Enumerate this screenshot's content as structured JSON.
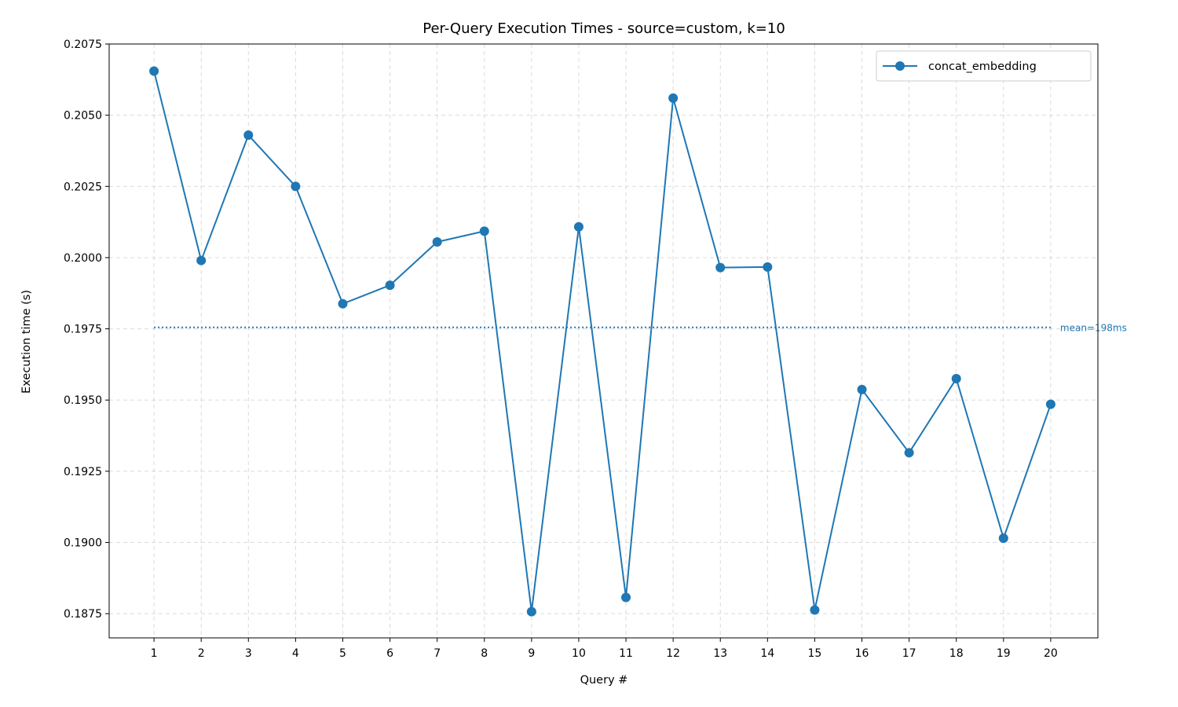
{
  "chart_data": {
    "type": "line",
    "title": "Per-Query Execution Times - source=custom, k=10",
    "xlabel": "Query #",
    "ylabel": "Execution time (s)",
    "x": [
      1,
      2,
      3,
      4,
      5,
      6,
      7,
      8,
      9,
      10,
      11,
      12,
      13,
      14,
      15,
      16,
      17,
      18,
      19,
      20
    ],
    "x_ticks": [
      "1",
      "2",
      "3",
      "4",
      "5",
      "6",
      "7",
      "8",
      "9",
      "10",
      "11",
      "12",
      "13",
      "14",
      "15",
      "16",
      "17",
      "18",
      "19",
      "20"
    ],
    "xlim": [
      0.05,
      21.0
    ],
    "ylim": [
      0.18665,
      0.2075
    ],
    "y_ticks": [
      "0.1875",
      "0.1900",
      "0.1925",
      "0.1950",
      "0.1975",
      "0.2000",
      "0.2025",
      "0.2050",
      "0.2075"
    ],
    "y_tick_values": [
      0.1875,
      0.19,
      0.1925,
      0.195,
      0.1975,
      0.2,
      0.2025,
      0.205,
      0.2075
    ],
    "grid": true,
    "legend_position": "top-right",
    "series": [
      {
        "name": "concat_embedding",
        "color": "#1f77b4",
        "marker": "circle",
        "values": [
          0.20655,
          0.1999,
          0.2043,
          0.2025,
          0.19838,
          0.19903,
          0.20055,
          0.20093,
          0.18757,
          0.20108,
          0.18807,
          0.2056,
          0.19965,
          0.19967,
          0.18763,
          0.19537,
          0.19315,
          0.19575,
          0.19015,
          0.19485
        ]
      }
    ],
    "mean_line": {
      "value": 0.19755,
      "label": "mean=198ms",
      "style": "dotted",
      "color": "#1f77b4"
    }
  }
}
